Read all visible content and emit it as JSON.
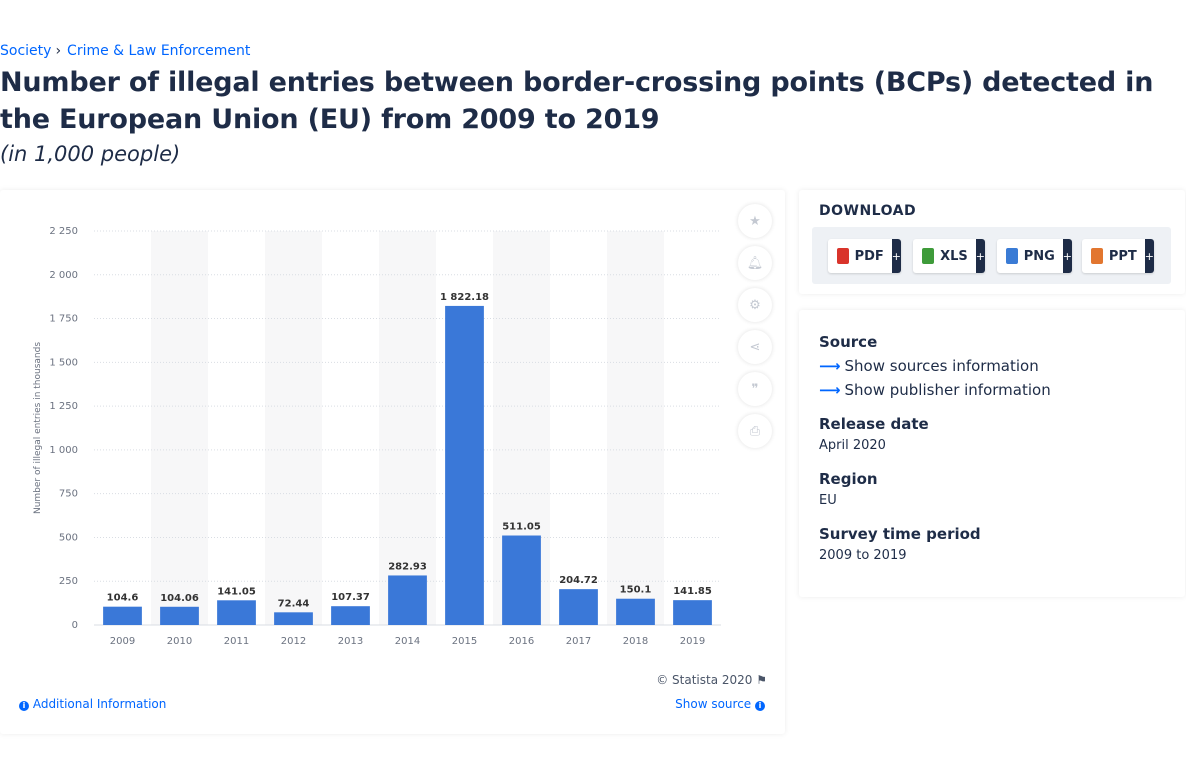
{
  "breadcrumb": {
    "items": [
      "Society",
      "Crime & Law Enforcement"
    ],
    "separator": "›"
  },
  "title": "Number of illegal entries between border-crossing points (BCPs) detected in the European Union (EU) from 2009 to 2019",
  "subtitle": "(in 1,000 people)",
  "chart_data": {
    "type": "bar",
    "categories": [
      "2009",
      "2010",
      "2011",
      "2012",
      "2013",
      "2014",
      "2015",
      "2016",
      "2017",
      "2018",
      "2019"
    ],
    "values": [
      104.6,
      104.06,
      141.05,
      72.44,
      107.37,
      282.93,
      1822.18,
      511.05,
      204.72,
      150.1,
      141.85
    ],
    "value_labels": [
      "104.6",
      "104.06",
      "141.05",
      "72.44",
      "107.37",
      "282.93",
      "1 822.18",
      "511.05",
      "204.72",
      "150.1",
      "141.85"
    ],
    "ylabel": "Number of illegal entries in thousands",
    "ylim": [
      0,
      2250
    ],
    "yticks": [
      0,
      250,
      500,
      750,
      1000,
      1250,
      1500,
      1750,
      2000,
      2250
    ],
    "ytick_labels": [
      "0",
      "250",
      "500",
      "750",
      "1 000",
      "1 250",
      "1 500",
      "1 750",
      "2 000",
      "2 250"
    ],
    "bar_color": "#3a78d8",
    "grid": true
  },
  "tools": [
    "star-icon",
    "bell-icon",
    "gear-icon",
    "share-icon",
    "quote-icon",
    "print-icon"
  ],
  "copyright": "© Statista 2020",
  "additional_info": "Additional Information",
  "show_source": "Show source",
  "download": {
    "title": "DOWNLOAD",
    "buttons": [
      {
        "label": "PDF",
        "color": "#d9342b"
      },
      {
        "label": "XLS",
        "color": "#3e9b3a"
      },
      {
        "label": "PNG",
        "color": "#3a7bd5"
      },
      {
        "label": "PPT",
        "color": "#e2762f"
      }
    ],
    "plus": "+"
  },
  "meta": {
    "source_label": "Source",
    "show_sources": "Show sources information",
    "show_publisher": "Show publisher information",
    "release_label": "Release date",
    "release_value": "April 2020",
    "region_label": "Region",
    "region_value": "EU",
    "period_label": "Survey time period",
    "period_value": "2009 to 2019"
  }
}
